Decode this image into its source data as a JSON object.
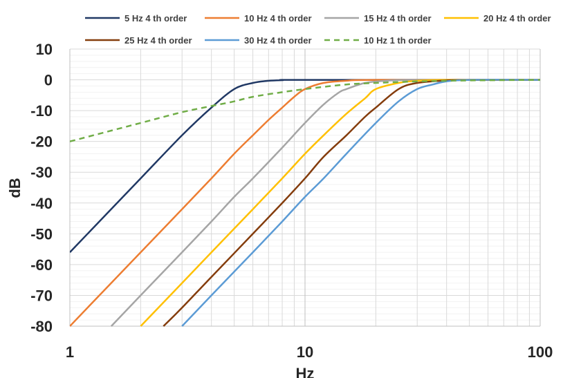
{
  "chart_data": {
    "type": "line",
    "title": "",
    "xlabel": "Hz",
    "ylabel": "dB",
    "x_scale": "log",
    "xlim": [
      1,
      100
    ],
    "ylim": [
      -80,
      10
    ],
    "x_ticks": [
      "1",
      "10",
      "100"
    ],
    "y_ticks": [
      "10",
      "0",
      "-10",
      "-20",
      "-30",
      "-40",
      "-50",
      "-60",
      "-70",
      "-80"
    ],
    "grid": true,
    "legend_position": "top",
    "colors": {
      "grid_major": "#d9d9d9",
      "grid_minor": "#f2f2f2",
      "axis": "#bfbfbf"
    },
    "series": [
      {
        "name": "5 Hz 4 th order",
        "color": "#203864",
        "dashed": false,
        "points": [
          [
            1,
            -56
          ],
          [
            2,
            -32
          ],
          [
            3,
            -18
          ],
          [
            4,
            -9
          ],
          [
            5,
            -3
          ],
          [
            6,
            -1
          ],
          [
            7,
            -0.3
          ],
          [
            8,
            -0.1
          ],
          [
            10,
            0
          ],
          [
            100,
            0
          ]
        ]
      },
      {
        "name": "10 Hz 4 th order",
        "color": "#ed7d31",
        "dashed": false,
        "points": [
          [
            1,
            -80
          ],
          [
            2,
            -56
          ],
          [
            3,
            -42
          ],
          [
            4,
            -32
          ],
          [
            5,
            -24
          ],
          [
            6,
            -18
          ],
          [
            7,
            -13
          ],
          [
            8,
            -9
          ],
          [
            9,
            -5.5
          ],
          [
            10,
            -3
          ],
          [
            12,
            -1
          ],
          [
            15,
            -0.3
          ],
          [
            20,
            0
          ],
          [
            100,
            0
          ]
        ]
      },
      {
        "name": "15 Hz 4 th order",
        "color": "#a5a5a5",
        "dashed": false,
        "points": [
          [
            1.5,
            -80
          ],
          [
            2,
            -70
          ],
          [
            3,
            -56
          ],
          [
            4,
            -46
          ],
          [
            5,
            -38
          ],
          [
            6,
            -32
          ],
          [
            8,
            -22
          ],
          [
            10,
            -14
          ],
          [
            12,
            -8
          ],
          [
            14,
            -4
          ],
          [
            15,
            -3
          ],
          [
            18,
            -1
          ],
          [
            22,
            -0.3
          ],
          [
            30,
            0
          ],
          [
            100,
            0
          ]
        ]
      },
      {
        "name": "20 Hz 4 th order",
        "color": "#ffc000",
        "dashed": false,
        "points": [
          [
            2,
            -80
          ],
          [
            3,
            -66
          ],
          [
            4,
            -56
          ],
          [
            6,
            -42
          ],
          [
            8,
            -32
          ],
          [
            10,
            -24
          ],
          [
            12,
            -18
          ],
          [
            15,
            -11
          ],
          [
            18,
            -6
          ],
          [
            20,
            -3
          ],
          [
            25,
            -1
          ],
          [
            30,
            -0.3
          ],
          [
            40,
            0
          ],
          [
            100,
            0
          ]
        ]
      },
      {
        "name": "25 Hz 4 th order",
        "color": "#843c0c",
        "dashed": false,
        "points": [
          [
            2.5,
            -80
          ],
          [
            3,
            -74
          ],
          [
            4,
            -64
          ],
          [
            6,
            -50
          ],
          [
            8,
            -40
          ],
          [
            10,
            -32
          ],
          [
            12,
            -25
          ],
          [
            15,
            -18
          ],
          [
            18,
            -12
          ],
          [
            20,
            -9
          ],
          [
            25,
            -3
          ],
          [
            30,
            -1
          ],
          [
            40,
            -0.2
          ],
          [
            50,
            0
          ],
          [
            100,
            0
          ]
        ]
      },
      {
        "name": "30 Hz 4 th order",
        "color": "#5b9bd5",
        "dashed": false,
        "points": [
          [
            3,
            -80
          ],
          [
            4,
            -70
          ],
          [
            6,
            -56
          ],
          [
            8,
            -46
          ],
          [
            10,
            -38
          ],
          [
            12,
            -32
          ],
          [
            15,
            -24
          ],
          [
            20,
            -14
          ],
          [
            25,
            -7
          ],
          [
            30,
            -3
          ],
          [
            35,
            -1.5
          ],
          [
            40,
            -0.5
          ],
          [
            50,
            0
          ],
          [
            100,
            0
          ]
        ]
      },
      {
        "name": "10 Hz 1 th order",
        "color": "#70ad47",
        "dashed": true,
        "points": [
          [
            1,
            -20
          ],
          [
            2,
            -14
          ],
          [
            3,
            -10.5
          ],
          [
            4,
            -8.5
          ],
          [
            5,
            -7
          ],
          [
            6,
            -5.5
          ],
          [
            8,
            -4
          ],
          [
            10,
            -3
          ],
          [
            15,
            -1.5
          ],
          [
            20,
            -1
          ],
          [
            30,
            -0.5
          ],
          [
            50,
            -0.2
          ],
          [
            100,
            0
          ]
        ]
      }
    ]
  }
}
